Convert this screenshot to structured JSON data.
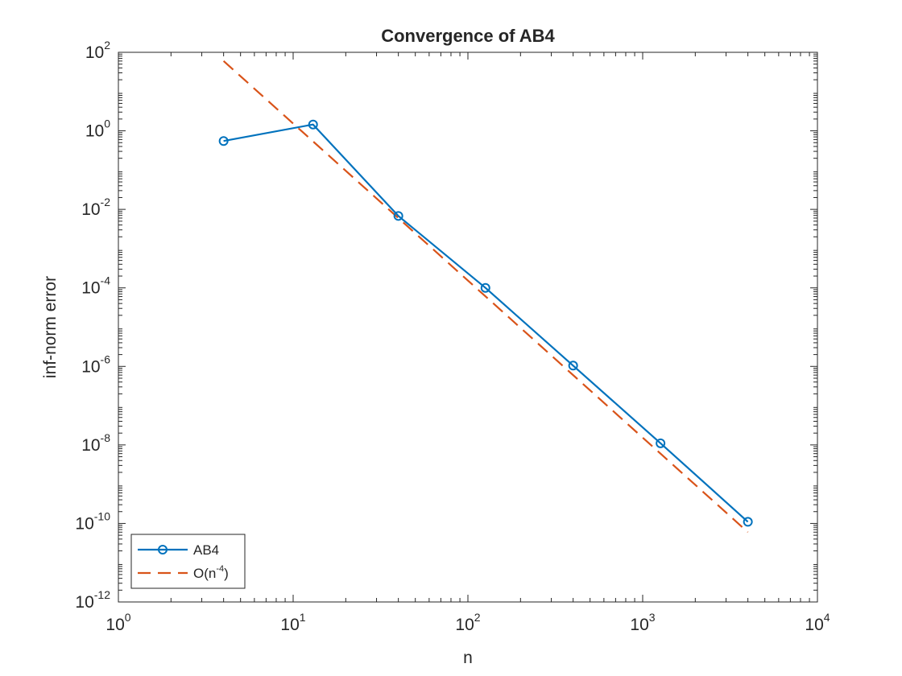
{
  "chart_data": {
    "type": "line",
    "title": "Convergence of AB4",
    "xlabel": "n",
    "ylabel": "inf-norm error",
    "x_scale": "log",
    "y_scale": "log",
    "xlim": [
      1,
      10000
    ],
    "ylim": [
      1e-12,
      100
    ],
    "x_ticks": [
      {
        "base": "10",
        "exp": "0",
        "value": 1
      },
      {
        "base": "10",
        "exp": "1",
        "value": 10
      },
      {
        "base": "10",
        "exp": "2",
        "value": 100
      },
      {
        "base": "10",
        "exp": "3",
        "value": 1000
      },
      {
        "base": "10",
        "exp": "4",
        "value": 10000
      }
    ],
    "y_ticks": [
      {
        "base": "10",
        "exp": "2",
        "value": 100
      },
      {
        "base": "10",
        "exp": "0",
        "value": 1
      },
      {
        "base": "10",
        "exp": "-2",
        "value": 0.01
      },
      {
        "base": "10",
        "exp": "-4",
        "value": 0.0001
      },
      {
        "base": "10",
        "exp": "-6",
        "value": 1e-06
      },
      {
        "base": "10",
        "exp": "-8",
        "value": 1e-08
      },
      {
        "base": "10",
        "exp": "-10",
        "value": 1e-10
      },
      {
        "base": "10",
        "exp": "-12",
        "value": 1e-12
      }
    ],
    "grid": false,
    "legend_position": "bottom-left",
    "series": [
      {
        "name": "AB4",
        "color": "#0072BD",
        "style": "solid-with-circle-markers",
        "x": [
          4,
          13,
          40,
          126,
          400,
          1265,
          4000
        ],
        "y": [
          0.55,
          1.45,
          0.0068,
          0.0001,
          1.05e-06,
          1.1e-08,
          1.1e-10
        ]
      },
      {
        "name": "O(n",
        "name_sup": "-4",
        "name_tail": ")",
        "color": "#D95319",
        "style": "dashed",
        "x": [
          4,
          4000
        ],
        "y": [
          60,
          6e-11
        ]
      }
    ]
  }
}
